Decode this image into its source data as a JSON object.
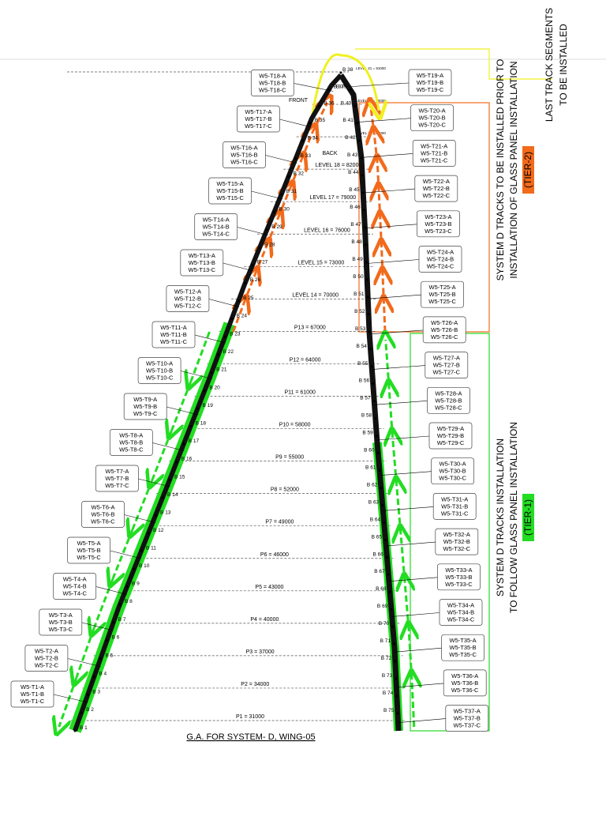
{
  "title": "G.A. FOR SYSTEM- D, WING-05",
  "front": "FRONT",
  "back": "BACK",
  "last_segments": [
    "LAST TRACK SEGMENTS",
    "TO BE INSTALLED"
  ],
  "tier2": {
    "lines": [
      "SYSTEM D TRACKS TO BE INSTALLED PRIOR TO",
      "INSTALLATION OF  GLASS PANEL INSTALLATION"
    ],
    "tag": "(TIER-2)"
  },
  "tier1": {
    "lines": [
      "SYSTEM D TRACKS INSTALLATION",
      "TO FOLLOW  GLASS PANEL INSTALLATION"
    ],
    "tag": "(TIER-1)"
  },
  "levels": [
    "P1 = 31000",
    "P2 = 34000",
    "P3 = 37000",
    "P4 = 40000",
    "P5 = 43000",
    "P6 = 46000",
    "P7 = 49000",
    "P8 = 52000",
    "P9 = 55000",
    "P10 = 58000",
    "P11 = 61000",
    "P12 = 64000",
    "P13 = 67000",
    "LEVEL 14 = 70000",
    "LEVEL 15 = 73000",
    "LEVEL 16 = 76000",
    "LEVEL 17 = 79000",
    "LEVEL 18 = 82000",
    "LEVEL 19 = 85000",
    "LEVEL 20 = 88000",
    "LEVEL 21 = 91000"
  ],
  "beams": [
    "B 1",
    "B 2",
    "B 3",
    "B 4",
    "B 5",
    "B 6",
    "B 7",
    "B 8",
    "B 9",
    "B 10",
    "B 11",
    "B 12",
    "B 13",
    "B 14",
    "B 15",
    "B 16",
    "B 17",
    "B 18",
    "B 19",
    "B 20",
    "B 21",
    "B 22",
    "B 23",
    "B 24",
    "B 25",
    "B 26",
    "B 27",
    "B 28",
    "B 29",
    "B 30",
    "B 31",
    "B 32",
    "B 33",
    "B 34",
    "B 35",
    "B 36",
    "B 37",
    "B 38",
    "B 39",
    "B 40",
    "B 41",
    "B 42",
    "B 43",
    "B 44",
    "B 45",
    "B 46",
    "B 47",
    "B 48",
    "B 49",
    "B 50",
    "B 51",
    "B 52",
    "B 53",
    "B 54",
    "B 55",
    "B 56",
    "B 57",
    "B 58",
    "B 59",
    "B 60",
    "B 61",
    "B 62",
    "B 63",
    "B 64",
    "B 65",
    "B 66",
    "B 67",
    "B 68",
    "B 69",
    "B 70",
    "B 71",
    "B 72",
    "B 73",
    "B 74",
    "B 75"
  ],
  "tracks": [
    [
      "W5-T1-A",
      "W5-T1-B",
      "W5-T1-C"
    ],
    [
      "W5-T2-A",
      "W5-T2-B",
      "W5-T2-C"
    ],
    [
      "W5-T3-A",
      "W5-T3-B",
      "W5-T3-C"
    ],
    [
      "W5-T4-A",
      "W5-T4-B",
      "W5-T4-C"
    ],
    [
      "W5-T5-A",
      "W5-T5-B",
      "W5-T5-C"
    ],
    [
      "W5-T6-A",
      "W5-T6-B",
      "W5-T6-C"
    ],
    [
      "W5-T7-A",
      "W5-T7-B",
      "W5-T7-C"
    ],
    [
      "W5-T8-A",
      "W5-T8-B",
      "W5-T8-C"
    ],
    [
      "W5-T9-A",
      "W5-T9-B",
      "W5-T9-C"
    ],
    [
      "W5-T10-A",
      "W5-T10-B",
      "W5-T10-C"
    ],
    [
      "W5-T11-A",
      "W5-T11-B",
      "W5-T11-C"
    ],
    [
      "W5-T12-A",
      "W5-T12-B",
      "W5-T12-C"
    ],
    [
      "W5-T13-A",
      "W5-T13-B",
      "W5-T13-C"
    ],
    [
      "W5-T14-A",
      "W5-T14-B",
      "W5-T14-C"
    ],
    [
      "W5-T15-A",
      "W5-T15-B",
      "W5-T15-C"
    ],
    [
      "W5-T16-A",
      "W5-T16-B",
      "W5-T16-C"
    ],
    [
      "W5-T17-A",
      "W5-T17-B",
      "W5-T17-C"
    ],
    [
      "W5-T18-A",
      "W5-T18-B",
      "W5-T18-C"
    ],
    [
      "W5-T19-A",
      "W5-T19-B",
      "W5-T19-C"
    ],
    [
      "W5-T20-A",
      "W5-T20-B",
      "W5-T20-C"
    ],
    [
      "W5-T21-A",
      "W5-T21-B",
      "W5-T21-C"
    ],
    [
      "W5-T22-A",
      "W5-T22-B",
      "W5-T22-C"
    ],
    [
      "W5-T23-A",
      "W5-T23-B",
      "W5-T23-C"
    ],
    [
      "W5-T24-A",
      "W5-T24-B",
      "W5-T24-C"
    ],
    [
      "W5-T25-A",
      "W5-T25-B",
      "W5-T25-C"
    ],
    [
      "W5-T26-A",
      "W5-T26-B",
      "W5-T26-C"
    ],
    [
      "W5-T27-A",
      "W5-T27-B",
      "W5-T27-C"
    ],
    [
      "W5-T28-A",
      "W5-T28-B",
      "W5-T28-C"
    ],
    [
      "W5-T29-A",
      "W5-T29-B",
      "W5-T29-C"
    ],
    [
      "W5-T30-A",
      "W5-T30-B",
      "W5-T30-C"
    ],
    [
      "W5-T31-A",
      "W5-T31-B",
      "W5-T31-C"
    ],
    [
      "W5-T32-A",
      "W5-T32-B",
      "W5-T32-C"
    ],
    [
      "W5-T33-A",
      "W5-T33-B",
      "W5-T33-C"
    ],
    [
      "W5-T34-A",
      "W5-T34-B",
      "W5-T34-C"
    ],
    [
      "W5-T35-A",
      "W5-T35-B",
      "W5-T35-C"
    ],
    [
      "W5-T36-A",
      "W5-T36-B",
      "W5-T36-C"
    ],
    [
      "W5-T37-A",
      "W5-T37-B",
      "W5-T37-C"
    ]
  ]
}
